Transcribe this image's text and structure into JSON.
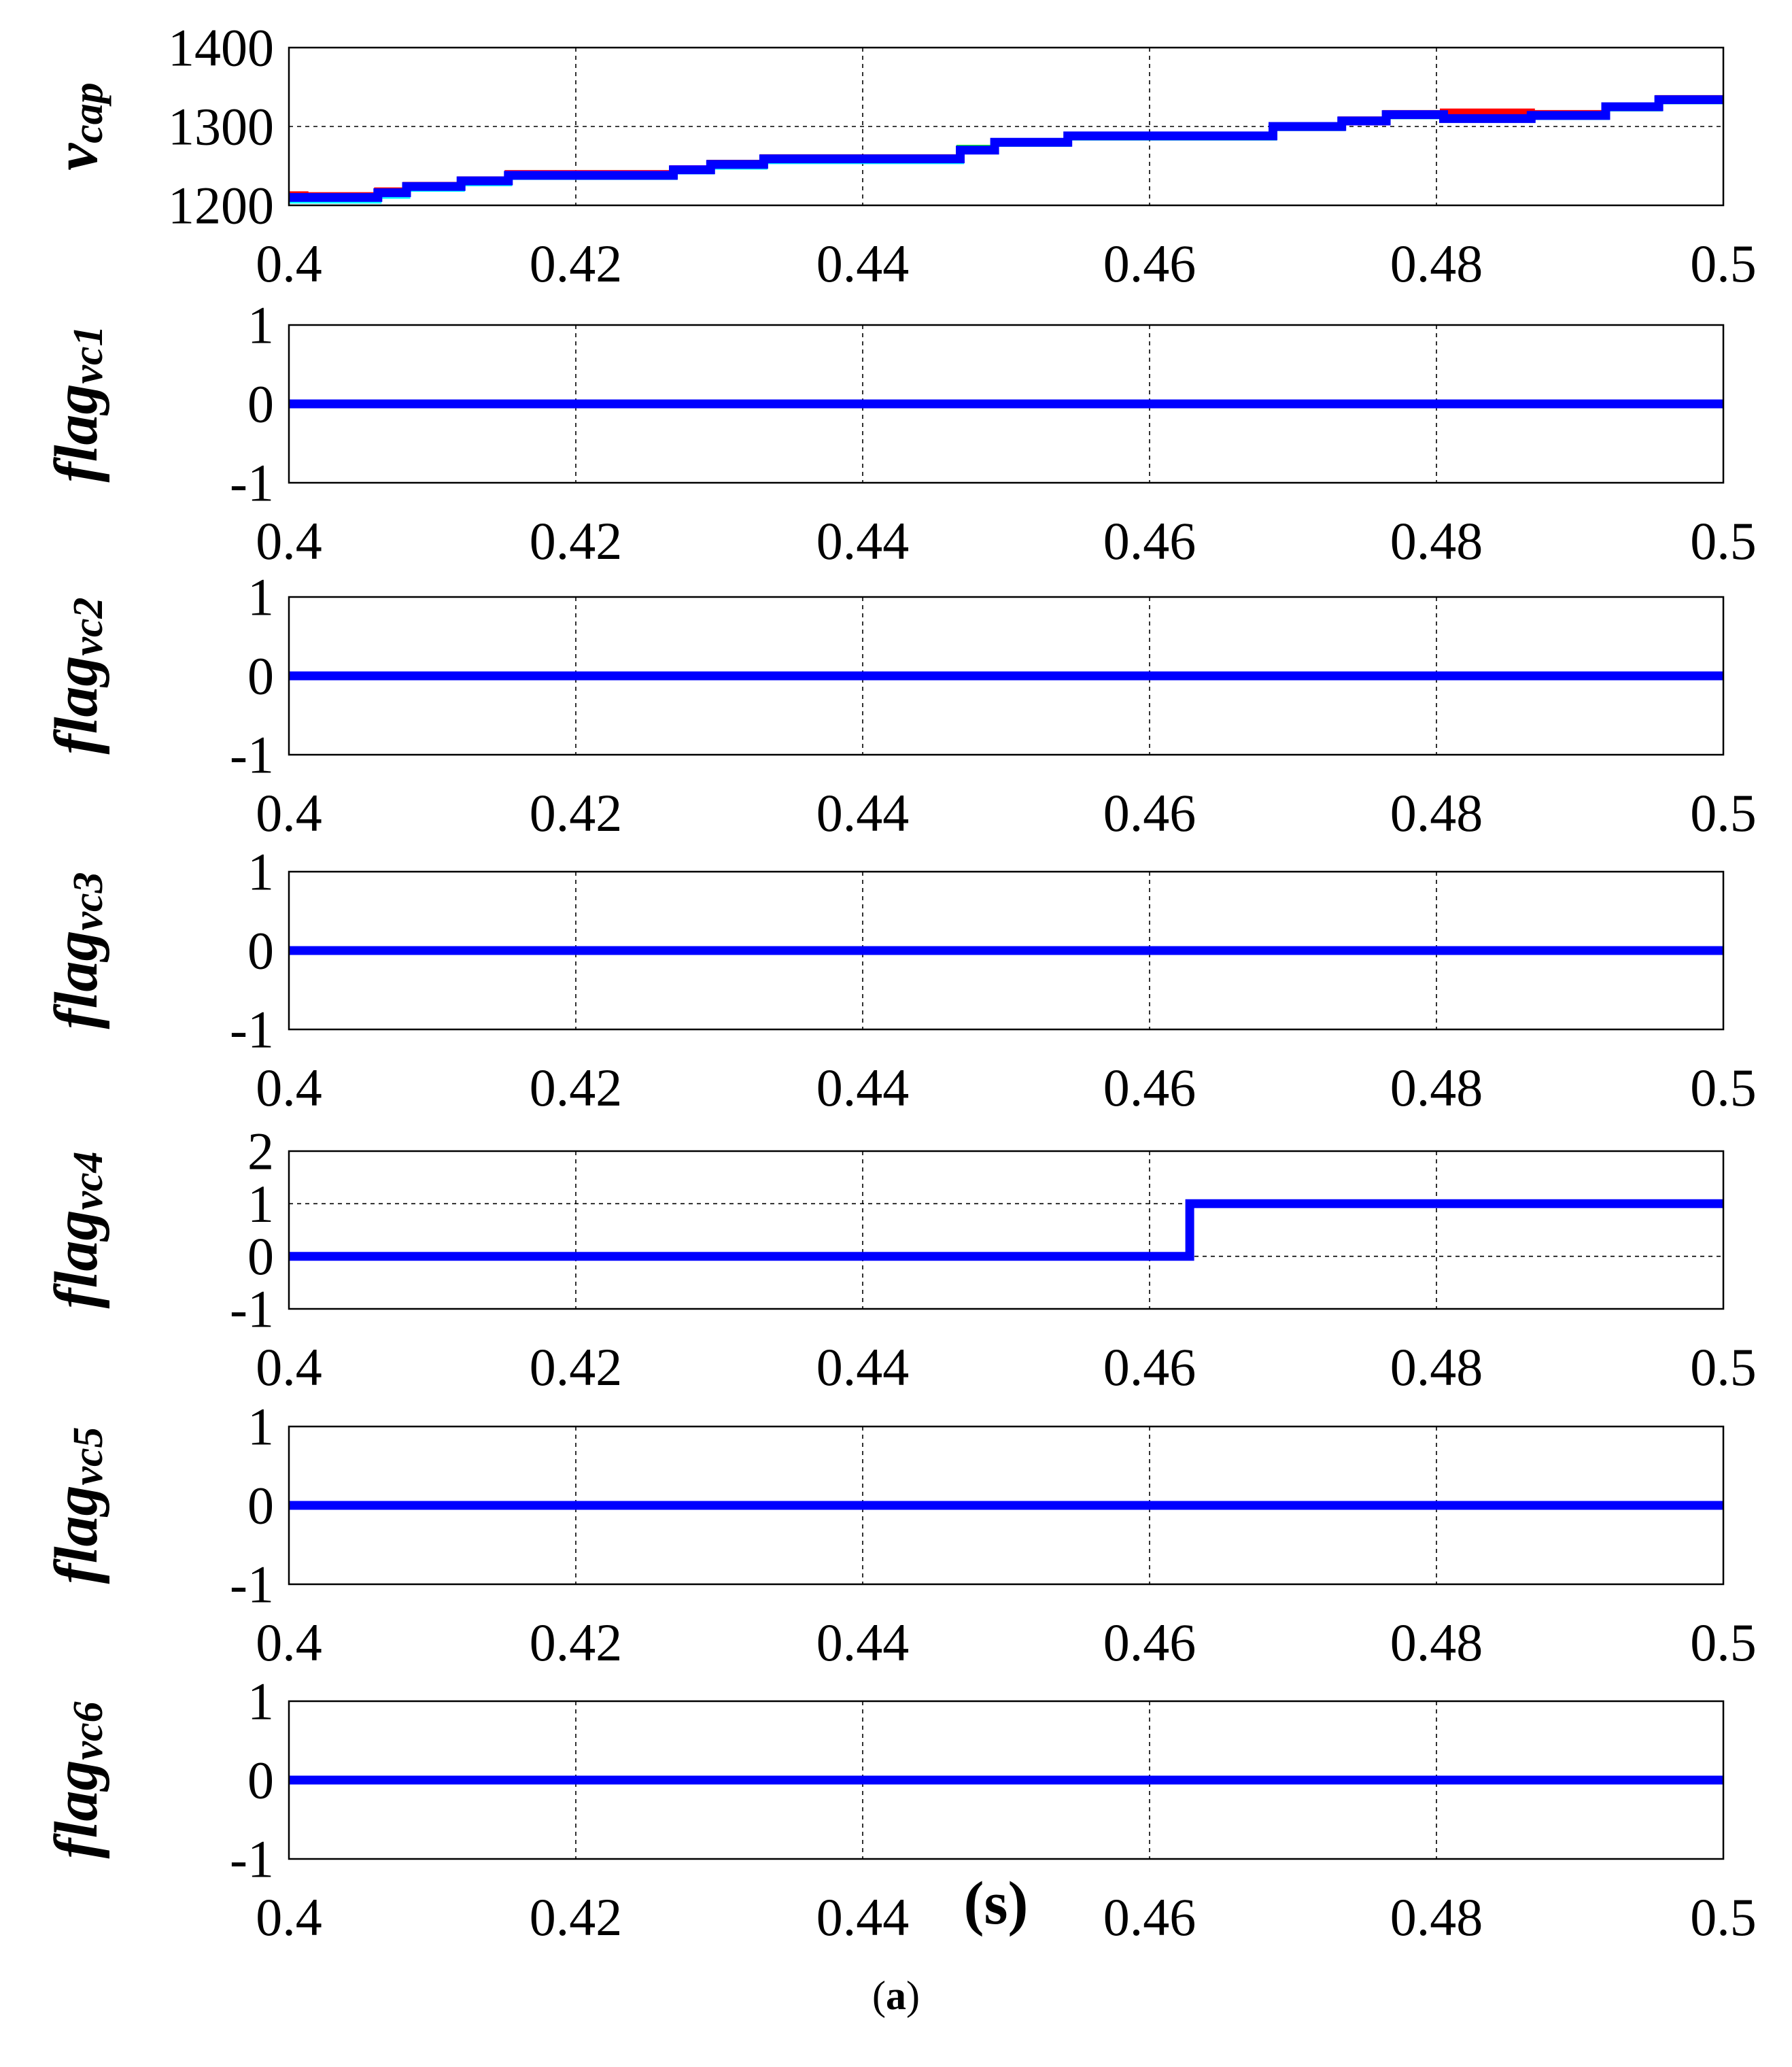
{
  "chart_data": [
    {
      "type": "line",
      "ylabel": {
        "main": "v",
        "sub": "cap"
      },
      "xlim": [
        0.4,
        0.5
      ],
      "ylim": [
        1200,
        1400
      ],
      "xticks": [
        "0.4",
        "0.42",
        "0.44",
        "0.46",
        "0.48",
        "0.5"
      ],
      "yticks": [
        "1200",
        "1300",
        "1400"
      ],
      "grid": true,
      "series": [
        {
          "color": "#ff0000",
          "x": [
            0.4,
            0.4011,
            0.4011,
            0.4062,
            0.4062,
            0.4082,
            0.4082,
            0.412,
            0.412,
            0.4153,
            0.4153,
            0.4268,
            0.4268,
            0.4294,
            0.4294,
            0.4331,
            0.4331,
            0.4468,
            0.4468,
            0.4492,
            0.4492,
            0.4543,
            0.4543,
            0.4686,
            0.4686,
            0.4734,
            0.4734,
            0.4765,
            0.4765,
            0.4805,
            0.4805,
            0.4866,
            0.4866,
            0.4918,
            0.4918,
            0.4955,
            0.4955,
            0.5
          ],
          "y": [
            1213,
            1213,
            1212,
            1212,
            1218,
            1218,
            1225,
            1225,
            1232,
            1232,
            1240,
            1240,
            1246,
            1246,
            1253,
            1253,
            1260,
            1260,
            1270,
            1270,
            1280,
            1280,
            1288,
            1288,
            1300,
            1300,
            1308,
            1308,
            1316,
            1316,
            1318,
            1318,
            1316,
            1316,
            1325,
            1325,
            1335,
            1335
          ]
        },
        {
          "color": "#00ff00",
          "x": [
            0.4,
            0.4062,
            0.4062,
            0.4082,
            0.4082,
            0.412,
            0.412,
            0.4153,
            0.4153,
            0.4268,
            0.4268,
            0.4294,
            0.4294,
            0.4331,
            0.4331,
            0.4468,
            0.4468,
            0.4492,
            0.4492,
            0.4543,
            0.4543,
            0.4686,
            0.4686,
            0.4734,
            0.4734,
            0.4765,
            0.4765,
            0.4805,
            0.4805,
            0.4866,
            0.4866,
            0.4918,
            0.4918,
            0.4955,
            0.4955,
            0.5
          ],
          "y": [
            1209,
            1209,
            1215,
            1215,
            1223,
            1223,
            1230,
            1230,
            1238,
            1238,
            1245,
            1245,
            1251,
            1251,
            1258,
            1258,
            1272,
            1272,
            1279,
            1279,
            1287,
            1287,
            1299,
            1299,
            1307,
            1307,
            1314,
            1314,
            1310,
            1310,
            1313,
            1313,
            1324,
            1324,
            1333,
            1333
          ]
        },
        {
          "color": "#ff00ff",
          "x": [
            0.4,
            0.4062,
            0.4062,
            0.4082,
            0.4082,
            0.412,
            0.412,
            0.4153,
            0.4153,
            0.4268,
            0.4268,
            0.4294,
            0.4294,
            0.4331,
            0.4331,
            0.4468,
            0.4468,
            0.4492,
            0.4492,
            0.4543,
            0.4543,
            0.4686,
            0.4686,
            0.4734,
            0.4734,
            0.4765,
            0.4765,
            0.4805,
            0.4805,
            0.4866,
            0.4866,
            0.4918,
            0.4918,
            0.4955,
            0.4955,
            0.5
          ],
          "y": [
            1210,
            1210,
            1216,
            1216,
            1224,
            1224,
            1231,
            1231,
            1239,
            1239,
            1246,
            1246,
            1252,
            1252,
            1259,
            1259,
            1270,
            1270,
            1280,
            1280,
            1288,
            1288,
            1299,
            1299,
            1306,
            1306,
            1315,
            1315,
            1310,
            1310,
            1313,
            1313,
            1325,
            1325,
            1334,
            1334
          ]
        },
        {
          "color": "#00ffff",
          "x": [
            0.4,
            0.4062,
            0.4062,
            0.4082,
            0.4082,
            0.412,
            0.412,
            0.4153,
            0.4153,
            0.4268,
            0.4268,
            0.4294,
            0.4294,
            0.4331,
            0.4331,
            0.4468,
            0.4468,
            0.4492,
            0.4492,
            0.4543,
            0.4543,
            0.4686,
            0.4686,
            0.4734,
            0.4734,
            0.4765,
            0.4765,
            0.4805,
            0.4805,
            0.4866,
            0.4866,
            0.4918,
            0.4918,
            0.4955,
            0.4955,
            0.5
          ],
          "y": [
            1207,
            1207,
            1213,
            1213,
            1222,
            1222,
            1229,
            1229,
            1237,
            1237,
            1244,
            1244,
            1250,
            1250,
            1257,
            1257,
            1271,
            1271,
            1279,
            1279,
            1287,
            1287,
            1299,
            1299,
            1307,
            1307,
            1314,
            1314,
            1310,
            1310,
            1313,
            1313,
            1324,
            1324,
            1333,
            1333
          ]
        },
        {
          "color": "#0000ff",
          "x": [
            0.4,
            0.4062,
            0.4062,
            0.4082,
            0.4082,
            0.412,
            0.412,
            0.4153,
            0.4153,
            0.4268,
            0.4268,
            0.4294,
            0.4294,
            0.4331,
            0.4331,
            0.4468,
            0.4468,
            0.4492,
            0.4492,
            0.4543,
            0.4543,
            0.4686,
            0.4686,
            0.4734,
            0.4734,
            0.4765,
            0.4765,
            0.4805,
            0.4805,
            0.4866,
            0.4866,
            0.4918,
            0.4918,
            0.4955,
            0.4955,
            0.5
          ],
          "y": [
            1210,
            1210,
            1216,
            1216,
            1224,
            1224,
            1231,
            1231,
            1238,
            1238,
            1245,
            1245,
            1252,
            1252,
            1259,
            1259,
            1270,
            1270,
            1280,
            1280,
            1288,
            1288,
            1300,
            1300,
            1307,
            1307,
            1315,
            1315,
            1310,
            1310,
            1314,
            1314,
            1325,
            1325,
            1334,
            1334
          ]
        }
      ]
    },
    {
      "type": "line",
      "ylabel": {
        "main": "flag",
        "sub": "vc1"
      },
      "xlim": [
        0.4,
        0.5
      ],
      "ylim": [
        -1,
        1
      ],
      "xticks": [
        "0.4",
        "0.42",
        "0.44",
        "0.46",
        "0.48",
        "0.5"
      ],
      "yticks": [
        "-1",
        "0",
        "1"
      ],
      "grid": true,
      "series": [
        {
          "color": "#0000ff",
          "x": [
            0.4,
            0.5
          ],
          "y": [
            0,
            0
          ]
        }
      ]
    },
    {
      "type": "line",
      "ylabel": {
        "main": "flag",
        "sub": "vc2"
      },
      "xlim": [
        0.4,
        0.5
      ],
      "ylim": [
        -1,
        1
      ],
      "xticks": [
        "0.4",
        "0.42",
        "0.44",
        "0.46",
        "0.48",
        "0.5"
      ],
      "yticks": [
        "-1",
        "0",
        "1"
      ],
      "grid": true,
      "series": [
        {
          "color": "#0000ff",
          "x": [
            0.4,
            0.5
          ],
          "y": [
            0,
            0
          ]
        }
      ]
    },
    {
      "type": "line",
      "ylabel": {
        "main": "flag",
        "sub": "vc3"
      },
      "xlim": [
        0.4,
        0.5
      ],
      "ylim": [
        -1,
        1
      ],
      "xticks": [
        "0.4",
        "0.42",
        "0.44",
        "0.46",
        "0.48",
        "0.5"
      ],
      "yticks": [
        "-1",
        "0",
        "1"
      ],
      "grid": true,
      "series": [
        {
          "color": "#0000ff",
          "x": [
            0.4,
            0.5
          ],
          "y": [
            0,
            0
          ]
        }
      ]
    },
    {
      "type": "line",
      "ylabel": {
        "main": "flag",
        "sub": "vc4"
      },
      "xlim": [
        0.4,
        0.5
      ],
      "ylim": [
        -1,
        2
      ],
      "xticks": [
        "0.4",
        "0.42",
        "0.44",
        "0.46",
        "0.48",
        "0.5"
      ],
      "yticks": [
        "-1",
        "0",
        "1",
        "2"
      ],
      "grid": true,
      "series": [
        {
          "color": "#0000ff",
          "x": [
            0.4,
            0.4628,
            0.4628,
            0.5
          ],
          "y": [
            0,
            0,
            1,
            1
          ]
        }
      ]
    },
    {
      "type": "line",
      "ylabel": {
        "main": "flag",
        "sub": "vc5"
      },
      "xlim": [
        0.4,
        0.5
      ],
      "ylim": [
        -1,
        1
      ],
      "xticks": [
        "0.4",
        "0.42",
        "0.44",
        "0.46",
        "0.48",
        "0.5"
      ],
      "yticks": [
        "-1",
        "0",
        "1"
      ],
      "grid": true,
      "series": [
        {
          "color": "#0000ff",
          "x": [
            0.4,
            0.5
          ],
          "y": [
            0,
            0
          ]
        }
      ]
    },
    {
      "type": "line",
      "ylabel": {
        "main": "flag",
        "sub": "vc6"
      },
      "xlabel": "(s)",
      "xlim": [
        0.4,
        0.5
      ],
      "ylim": [
        -1,
        1
      ],
      "xticks": [
        "0.4",
        "0.42",
        "0.44",
        "0.46",
        "0.48",
        "0.5"
      ],
      "yticks": [
        "-1",
        "0",
        "1"
      ],
      "grid": true,
      "series": [
        {
          "color": "#0000ff",
          "x": [
            0.4,
            0.5
          ],
          "y": [
            0,
            0
          ]
        }
      ]
    }
  ],
  "caption": {
    "open": "(",
    "label": "a",
    "close": ")"
  }
}
